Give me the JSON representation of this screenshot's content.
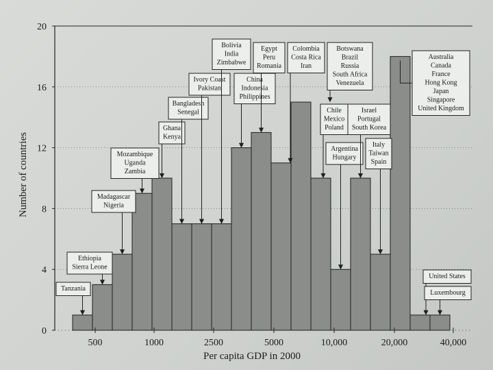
{
  "chart_data": {
    "type": "bar",
    "xlabel": "Per capita GDP in 2000",
    "ylabel": "Number of countries",
    "ylim": [
      0,
      20
    ],
    "yticks": [
      "0",
      "4",
      "8",
      "12",
      "16",
      "20"
    ],
    "xticks": [
      "500",
      "1000",
      "2500",
      "5000",
      "10,000",
      "20,000",
      "40,000"
    ],
    "grid": "dotted horizontal",
    "values": [
      1,
      3,
      5,
      9,
      10,
      7,
      7,
      7,
      12,
      13,
      11,
      15,
      10,
      4,
      10,
      5,
      18,
      1,
      1
    ],
    "annotations": [
      {
        "bar": 0,
        "lines": [
          "Tanzania"
        ]
      },
      {
        "bar": 1,
        "lines": [
          "Ethiopia",
          "Sierra Leone"
        ]
      },
      {
        "bar": 2,
        "lines": [
          "Madagascar",
          "Nigeria"
        ]
      },
      {
        "bar": 3,
        "lines": [
          "Mozambique",
          "Uganda",
          "Zambia"
        ]
      },
      {
        "bar": 4,
        "lines": [
          "Ghana",
          "Kenya"
        ]
      },
      {
        "bar": 5,
        "lines": [
          "Bangladesh",
          "Senegal"
        ]
      },
      {
        "bar": 6,
        "lines": [
          "Ivory Coast",
          "Pakistan"
        ]
      },
      {
        "bar": 7,
        "lines": [
          "Bolivia",
          "India",
          "Zimbabwe"
        ]
      },
      {
        "bar": 8,
        "lines": [
          "China",
          "Indonesia",
          "Philippines"
        ]
      },
      {
        "bar": 9,
        "lines": [
          "Egypt",
          "Peru",
          "Romania"
        ]
      },
      {
        "bar": 10,
        "lines": [
          "Colombia",
          "Costa Rica",
          "Iran"
        ]
      },
      {
        "bar": 11,
        "lines": [
          "Botswana",
          "Brazil",
          "Russia",
          "South Africa",
          "Venezuela"
        ]
      },
      {
        "bar": 12,
        "lines": [
          "Chile",
          "Mexico",
          "Poland"
        ]
      },
      {
        "bar": 13,
        "lines": [
          "Argentina",
          "Hungary"
        ]
      },
      {
        "bar": 14,
        "lines": [
          "Israel",
          "Portugal",
          "South Korea"
        ]
      },
      {
        "bar": 15,
        "lines": [
          "Italy",
          "Taiwan",
          "Spain"
        ]
      },
      {
        "bar": 16,
        "lines": [
          "Australia",
          "Canada",
          "France",
          "Hong Kong",
          "Japan",
          "Singapore",
          "United Kingdom"
        ]
      },
      {
        "bar": 17,
        "lines": [
          "United States"
        ]
      },
      {
        "bar": 18,
        "lines": [
          "Luxembourg"
        ]
      }
    ]
  },
  "colors": {
    "bar_fill": "#8a8d8a",
    "bar_stroke": "#1e1e1e",
    "callout_fill": "#eceeeb",
    "background": "#d6d8d5"
  }
}
